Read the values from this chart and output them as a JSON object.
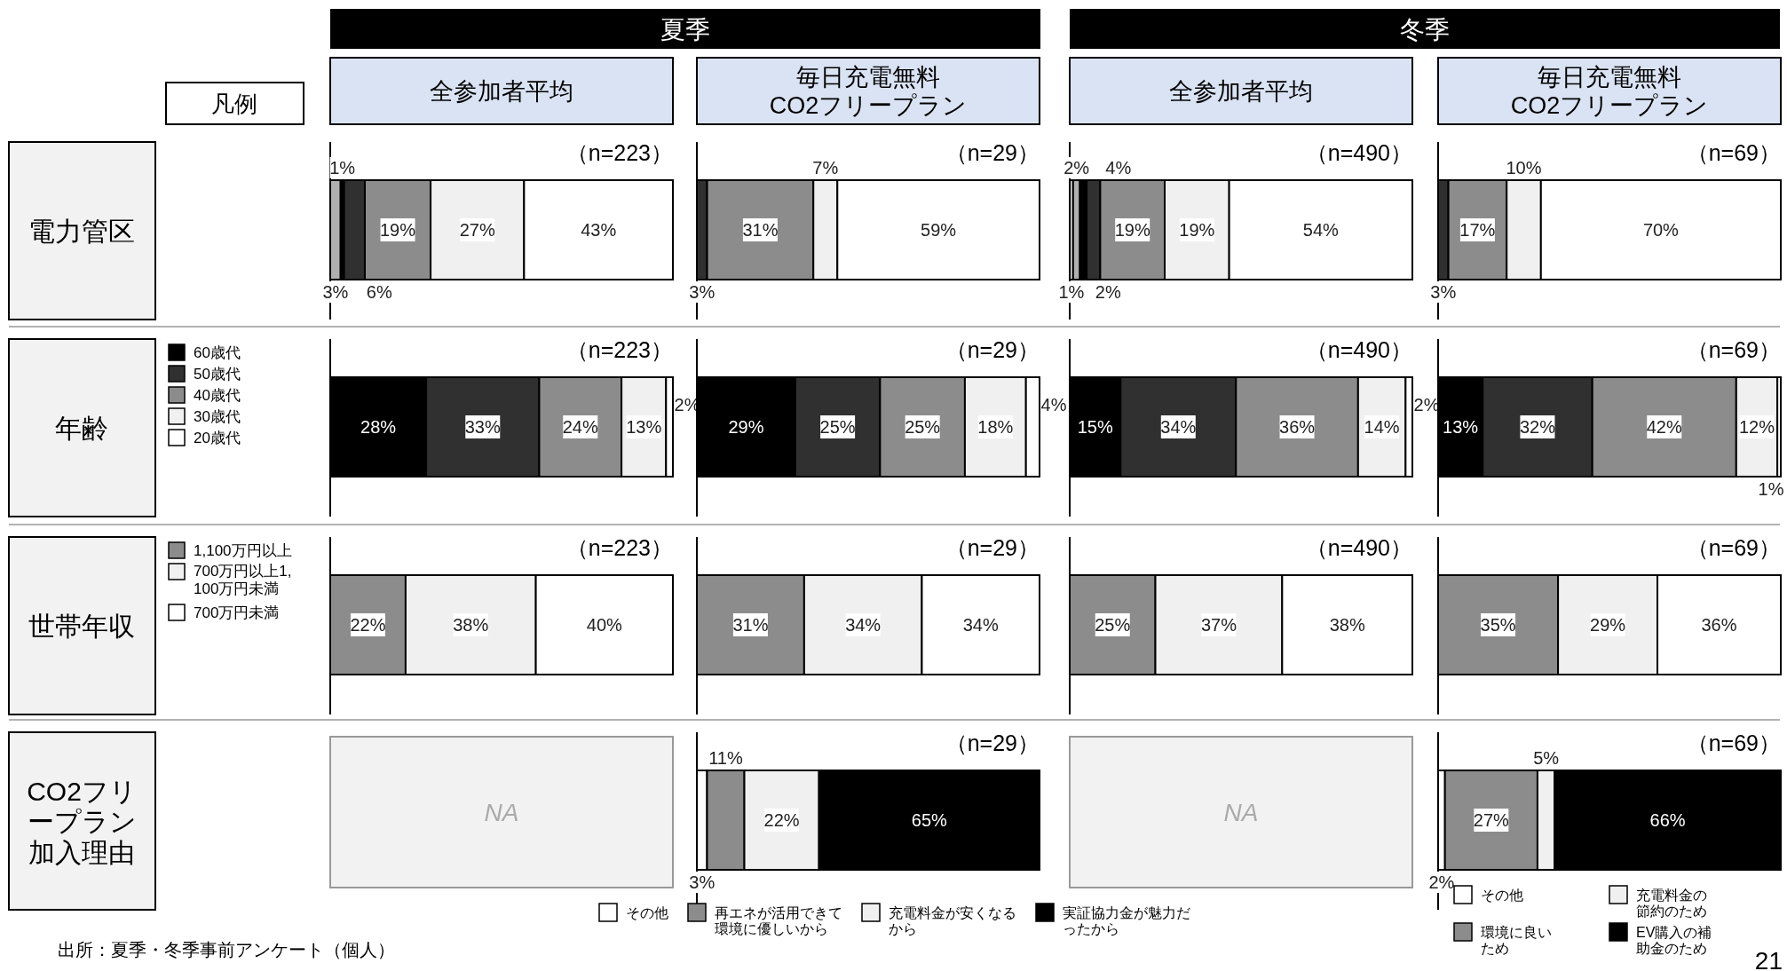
{
  "chart_data": [
    {
      "type": "other",
      "annotations": [
        "夏季",
        "冬季",
        "全参加者平均",
        "毎日充電無料\nCO2フリープラン",
        "全参加者平均",
        "毎日充電無料\nCO2フリープラン",
        "凡例",
        "出所：夏季・冬季事前アンケート（個人）",
        "21"
      ]
    },
    {
      "type": "bar",
      "orientation": "horizontal",
      "stacked": true,
      "ylabel": "電力管区",
      "categories": [
        null
      ],
      "annotations": [
        "（n=223）"
      ],
      "series": [
        {
          "color": "#b0b0b0",
          "values": [
            3
          ],
          "value_labels": [
            "3%"
          ]
        },
        {
          "color": "#000000",
          "values": [
            1
          ],
          "value_labels": [
            "1%"
          ]
        },
        {
          "color": "#303030",
          "values": [
            6
          ],
          "value_labels": [
            "6%"
          ]
        },
        {
          "color": "#8c8c8c",
          "values": [
            19
          ],
          "value_labels": [
            "19%"
          ]
        },
        {
          "color": "#f0f0f0",
          "values": [
            27
          ],
          "value_labels": [
            "27%"
          ]
        },
        {
          "color": "#ffffff",
          "values": [
            43
          ],
          "value_labels": [
            "43%"
          ]
        }
      ]
    },
    {
      "type": "bar",
      "orientation": "horizontal",
      "stacked": true,
      "categories": [
        null
      ],
      "annotations": [
        "（n=29）"
      ],
      "series": [
        {
          "color": "#303030",
          "values": [
            3
          ],
          "value_labels": [
            "3%"
          ]
        },
        {
          "color": "#8c8c8c",
          "values": [
            31
          ],
          "value_labels": [
            "31%"
          ]
        },
        {
          "color": "#f0f0f0",
          "values": [
            7
          ],
          "value_labels": [
            "7%"
          ]
        },
        {
          "color": "#ffffff",
          "values": [
            59
          ],
          "value_labels": [
            "59%"
          ]
        }
      ]
    },
    {
      "type": "bar",
      "orientation": "horizontal",
      "stacked": true,
      "categories": [
        null
      ],
      "annotations": [
        "（n=490）"
      ],
      "series": [
        {
          "color": "#d9d9d9",
          "values": [
            1
          ],
          "value_labels": [
            "1%"
          ]
        },
        {
          "color": "#b0b0b0",
          "values": [
            2
          ],
          "value_labels": [
            "2%"
          ]
        },
        {
          "color": "#000000",
          "values": [
            2
          ],
          "value_labels": [
            "2%"
          ]
        },
        {
          "color": "#303030",
          "values": [
            4
          ],
          "value_labels": [
            "4%"
          ]
        },
        {
          "color": "#8c8c8c",
          "values": [
            19
          ],
          "value_labels": [
            "19%"
          ]
        },
        {
          "color": "#f0f0f0",
          "values": [
            19
          ],
          "value_labels": [
            "19%"
          ]
        },
        {
          "color": "#ffffff",
          "values": [
            54
          ],
          "value_labels": [
            "54%"
          ]
        }
      ]
    },
    {
      "type": "bar",
      "orientation": "horizontal",
      "stacked": true,
      "categories": [
        null
      ],
      "annotations": [
        "（n=69）"
      ],
      "series": [
        {
          "color": "#303030",
          "values": [
            3
          ],
          "value_labels": [
            "3%"
          ]
        },
        {
          "color": "#8c8c8c",
          "values": [
            17
          ],
          "value_labels": [
            "17%"
          ]
        },
        {
          "color": "#f0f0f0",
          "values": [
            10
          ],
          "value_labels": [
            "10%"
          ]
        },
        {
          "color": "#ffffff",
          "values": [
            70
          ],
          "value_labels": [
            "70%"
          ]
        }
      ]
    },
    {
      "type": "bar",
      "orientation": "horizontal",
      "stacked": true,
      "ylabel": "年齢",
      "legend": "left",
      "categories": [
        null
      ],
      "annotations": [
        "（n=223）"
      ],
      "series": [
        {
          "name": "60歳代",
          "color": "#000000",
          "values": [
            28
          ],
          "value_labels": [
            "28%"
          ]
        },
        {
          "name": "50歳代",
          "color": "#303030",
          "values": [
            33
          ],
          "value_labels": [
            "33%"
          ]
        },
        {
          "name": "40歳代",
          "color": "#8c8c8c",
          "values": [
            24
          ],
          "value_labels": [
            "24%"
          ]
        },
        {
          "name": "30歳代",
          "color": "#f0f0f0",
          "values": [
            13
          ],
          "value_labels": [
            "13%"
          ]
        },
        {
          "name": "20歳代",
          "color": "#ffffff",
          "values": [
            2
          ],
          "value_labels": [
            "2%"
          ]
        }
      ]
    },
    {
      "type": "bar",
      "orientation": "horizontal",
      "stacked": true,
      "categories": [
        null
      ],
      "annotations": [
        "（n=29）"
      ],
      "series": [
        {
          "color": "#000000",
          "values": [
            29
          ],
          "value_labels": [
            "29%"
          ]
        },
        {
          "color": "#303030",
          "values": [
            25
          ],
          "value_labels": [
            "25%"
          ]
        },
        {
          "color": "#8c8c8c",
          "values": [
            25
          ],
          "value_labels": [
            "25%"
          ]
        },
        {
          "color": "#f0f0f0",
          "values": [
            18
          ],
          "value_labels": [
            "18%"
          ]
        },
        {
          "color": "#ffffff",
          "values": [
            4
          ],
          "value_labels": [
            "4%"
          ]
        }
      ]
    },
    {
      "type": "bar",
      "orientation": "horizontal",
      "stacked": true,
      "categories": [
        null
      ],
      "annotations": [
        "（n=490）"
      ],
      "series": [
        {
          "color": "#000000",
          "values": [
            15
          ],
          "value_labels": [
            "15%"
          ]
        },
        {
          "color": "#303030",
          "values": [
            34
          ],
          "value_labels": [
            "34%"
          ]
        },
        {
          "color": "#8c8c8c",
          "values": [
            36
          ],
          "value_labels": [
            "36%"
          ]
        },
        {
          "color": "#f0f0f0",
          "values": [
            14
          ],
          "value_labels": [
            "14%"
          ]
        },
        {
          "color": "#ffffff",
          "values": [
            2
          ],
          "value_labels": [
            "2%"
          ]
        }
      ]
    },
    {
      "type": "bar",
      "orientation": "horizontal",
      "stacked": true,
      "categories": [
        null
      ],
      "annotations": [
        "（n=69）"
      ],
      "series": [
        {
          "color": "#000000",
          "values": [
            13
          ],
          "value_labels": [
            "13%"
          ]
        },
        {
          "color": "#303030",
          "values": [
            32
          ],
          "value_labels": [
            "32%"
          ]
        },
        {
          "color": "#8c8c8c",
          "values": [
            42
          ],
          "value_labels": [
            "42%"
          ]
        },
        {
          "color": "#f0f0f0",
          "values": [
            12
          ],
          "value_labels": [
            "12%"
          ]
        },
        {
          "color": "#ffffff",
          "values": [
            1
          ],
          "value_labels": [
            "1%"
          ]
        }
      ]
    },
    {
      "type": "bar",
      "orientation": "horizontal",
      "stacked": true,
      "ylabel": "世帯年収",
      "legend": "left",
      "categories": [
        null
      ],
      "annotations": [
        "（n=223）"
      ],
      "series": [
        {
          "name": "1,100万円以上",
          "color": "#8c8c8c",
          "values": [
            22
          ],
          "value_labels": [
            "22%"
          ]
        },
        {
          "name": "700万円以上1,100万円未満",
          "color": "#f0f0f0",
          "values": [
            38
          ],
          "value_labels": [
            "38%"
          ]
        },
        {
          "name": "700万円未満",
          "color": "#ffffff",
          "values": [
            40
          ],
          "value_labels": [
            "40%"
          ]
        }
      ]
    },
    {
      "type": "bar",
      "orientation": "horizontal",
      "stacked": true,
      "categories": [
        null
      ],
      "annotations": [
        "（n=29）"
      ],
      "series": [
        {
          "color": "#8c8c8c",
          "values": [
            31
          ],
          "value_labels": [
            "31%"
          ]
        },
        {
          "color": "#f0f0f0",
          "values": [
            34
          ],
          "value_labels": [
            "34%"
          ]
        },
        {
          "color": "#ffffff",
          "values": [
            34
          ],
          "value_labels": [
            "34%"
          ]
        }
      ]
    },
    {
      "type": "bar",
      "orientation": "horizontal",
      "stacked": true,
      "categories": [
        null
      ],
      "annotations": [
        "（n=490）"
      ],
      "series": [
        {
          "color": "#8c8c8c",
          "values": [
            25
          ],
          "value_labels": [
            "25%"
          ]
        },
        {
          "color": "#f0f0f0",
          "values": [
            37
          ],
          "value_labels": [
            "37%"
          ]
        },
        {
          "color": "#ffffff",
          "values": [
            38
          ],
          "value_labels": [
            "38%"
          ]
        }
      ]
    },
    {
      "type": "bar",
      "orientation": "horizontal",
      "stacked": true,
      "categories": [
        null
      ],
      "annotations": [
        "（n=69）"
      ],
      "series": [
        {
          "color": "#8c8c8c",
          "values": [
            35
          ],
          "value_labels": [
            "35%"
          ]
        },
        {
          "color": "#f0f0f0",
          "values": [
            29
          ],
          "value_labels": [
            "29%"
          ]
        },
        {
          "color": "#ffffff",
          "values": [
            36
          ],
          "value_labels": [
            "36%"
          ]
        }
      ]
    },
    {
      "type": "other",
      "ylabel": "CO2フリープラン加入理由",
      "annotations": [
        "NA"
      ]
    },
    {
      "type": "bar",
      "orientation": "horizontal",
      "stacked": true,
      "legend": "bottom",
      "categories": [
        null
      ],
      "annotations": [
        "（n=29）"
      ],
      "series": [
        {
          "name": "その他",
          "color": "#ffffff",
          "values": [
            3
          ],
          "value_labels": [
            "3%"
          ]
        },
        {
          "name": "再エネが活用できて環境に優しいから",
          "color": "#8c8c8c",
          "values": [
            11
          ],
          "value_labels": [
            "11%"
          ]
        },
        {
          "name": "充電料金が安くなるから",
          "color": "#f0f0f0",
          "values": [
            22
          ],
          "value_labels": [
            "22%"
          ]
        },
        {
          "name": "実証協力金が魅力だったから",
          "color": "#000000",
          "values": [
            65
          ],
          "value_labels": [
            "65%"
          ]
        }
      ]
    },
    {
      "type": "other",
      "annotations": [
        "NA"
      ]
    },
    {
      "type": "bar",
      "orientation": "horizontal",
      "stacked": true,
      "legend": "bottom",
      "categories": [
        null
      ],
      "annotations": [
        "（n=69）"
      ],
      "series": [
        {
          "name": "その他",
          "color": "#ffffff",
          "values": [
            2
          ],
          "value_labels": [
            "2%"
          ]
        },
        {
          "name": "環境に良いため",
          "color": "#8c8c8c",
          "values": [
            27
          ],
          "value_labels": [
            "27%"
          ]
        },
        {
          "name": "充電料金の節約のため",
          "color": "#f0f0f0",
          "values": [
            5
          ],
          "value_labels": [
            "5%"
          ]
        },
        {
          "name": "EV購入の補助金のため",
          "color": "#000000",
          "values": [
            66
          ],
          "value_labels": [
            "66%"
          ]
        }
      ]
    }
  ]
}
